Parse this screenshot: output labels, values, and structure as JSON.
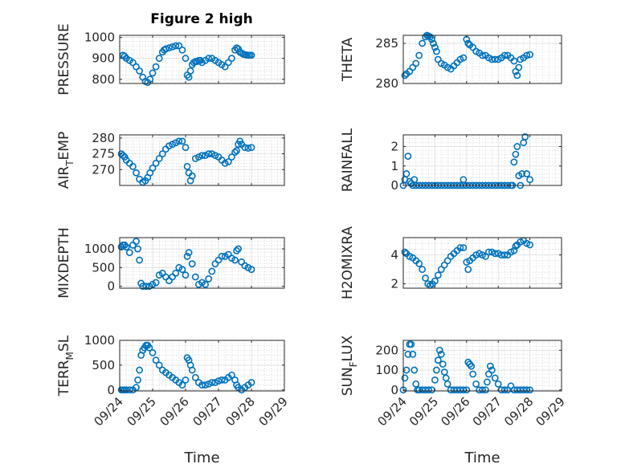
{
  "figure_title": "Figure 2 high",
  "colors": {
    "marker": "#0072BD",
    "axis": "#262626",
    "grid": "#dcdcdc"
  },
  "x_ticks": [
    {
      "value": "2000-09-24",
      "label": "09/24"
    },
    {
      "value": "2000-09-25",
      "label": "09/25"
    },
    {
      "value": "2000-09-26",
      "label": "09/26"
    },
    {
      "value": "2000-09-27",
      "label": "09/27"
    },
    {
      "value": "2000-09-28",
      "label": "09/28"
    },
    {
      "value": "2000-09-29",
      "label": "09/29"
    }
  ],
  "x_axis_label": "Time",
  "chart_data": [
    {
      "type": "scatter",
      "ylabel": "PRESSURE",
      "ylim": [
        780,
        1010
      ],
      "yticks": [
        800,
        900,
        1000
      ],
      "ytick_labels": [
        "800",
        "900",
        "1000"
      ],
      "series": [
        {
          "x": [
            0.1,
            0.15,
            0.2,
            0.3,
            0.4,
            0.5,
            0.6,
            0.7,
            0.78,
            0.85,
            0.92,
            1.0,
            1.1,
            1.2,
            1.3,
            1.35,
            1.4,
            1.5,
            1.6,
            1.7,
            1.8,
            1.9,
            2.0,
            2.05,
            2.1,
            2.15,
            2.2,
            2.25,
            2.3,
            2.35,
            2.4,
            2.45,
            2.5,
            2.6,
            2.7,
            2.8,
            2.9,
            3.0,
            3.1,
            3.2,
            3.3,
            3.4,
            3.5,
            3.55,
            3.6,
            3.65,
            3.7,
            3.75,
            3.8,
            3.85,
            3.9,
            3.95,
            4.0
          ],
          "y": [
            915,
            910,
            900,
            890,
            880,
            860,
            840,
            810,
            790,
            785,
            800,
            830,
            860,
            900,
            930,
            940,
            945,
            950,
            955,
            960,
            960,
            940,
            900,
            820,
            810,
            840,
            870,
            880,
            885,
            885,
            890,
            890,
            880,
            890,
            900,
            900,
            890,
            880,
            870,
            860,
            880,
            900,
            940,
            950,
            945,
            930,
            925,
            920,
            918,
            916,
            915,
            915,
            915
          ]
        }
      ]
    },
    {
      "type": "scatter",
      "ylabel": "THETA",
      "ylim": [
        280,
        286
      ],
      "yticks": [
        280,
        285
      ],
      "ytick_labels": [
        "280",
        "285"
      ],
      "series": [
        {
          "x": [
            0.05,
            0.1,
            0.2,
            0.3,
            0.4,
            0.5,
            0.6,
            0.7,
            0.75,
            0.8,
            0.85,
            0.9,
            0.95,
            1.0,
            1.05,
            1.1,
            1.2,
            1.3,
            1.4,
            1.5,
            1.6,
            1.7,
            1.8,
            1.9,
            2.0,
            2.05,
            2.1,
            2.2,
            2.3,
            2.4,
            2.5,
            2.6,
            2.7,
            2.8,
            2.9,
            3.0,
            3.1,
            3.2,
            3.3,
            3.4,
            3.5,
            3.55,
            3.6,
            3.65,
            3.7,
            3.8,
            3.9,
            4.0
          ],
          "y": [
            281,
            281.2,
            281.5,
            282,
            282.5,
            283.5,
            285,
            285.8,
            286,
            285.9,
            285.8,
            285.5,
            285,
            284.5,
            284,
            283,
            282.5,
            282.3,
            282,
            281.8,
            282.2,
            282.6,
            283,
            283.2,
            285.5,
            285,
            284.8,
            284.5,
            284,
            283.8,
            283.5,
            283.5,
            283.2,
            283.0,
            283,
            283,
            283.2,
            283.5,
            283.5,
            283.2,
            282.8,
            281.5,
            281,
            282,
            283,
            283.2,
            283.5,
            283.6
          ]
        }
      ]
    },
    {
      "type": "scatter",
      "ylabel": "AIR_TEMP",
      "ylim": [
        265,
        281
      ],
      "yticks": [
        270,
        275,
        280
      ],
      "ytick_labels": [
        "270",
        "275",
        "280"
      ],
      "series": [
        {
          "x": [
            0.05,
            0.1,
            0.15,
            0.2,
            0.3,
            0.4,
            0.5,
            0.6,
            0.7,
            0.78,
            0.85,
            0.92,
            1.0,
            1.1,
            1.2,
            1.3,
            1.4,
            1.5,
            1.6,
            1.7,
            1.8,
            1.9,
            2.0,
            2.05,
            2.1,
            2.15,
            2.2,
            2.3,
            2.4,
            2.5,
            2.6,
            2.7,
            2.8,
            2.9,
            3.0,
            3.1,
            3.2,
            3.3,
            3.4,
            3.5,
            3.55,
            3.6,
            3.65,
            3.7,
            3.8,
            3.9,
            4.0
          ],
          "y": [
            275,
            274.5,
            274,
            273,
            272,
            271,
            269,
            267,
            266,
            266.5,
            267.5,
            269,
            270.5,
            272,
            273.5,
            275,
            276.5,
            277.5,
            278,
            278.5,
            279,
            279,
            277,
            271,
            269,
            266.5,
            268,
            273.5,
            274,
            274.5,
            274.5,
            275,
            275,
            274.5,
            274,
            273,
            272,
            272.5,
            274,
            275.5,
            276,
            278,
            279,
            278,
            277,
            276.8,
            277
          ]
        }
      ]
    },
    {
      "type": "scatter",
      "ylabel": "RAINFALL",
      "ylim": [
        0,
        2.6
      ],
      "yticks": [
        0,
        1,
        2
      ],
      "ytick_labels": [
        "0",
        "1",
        "2"
      ],
      "series": [
        {
          "x": [
            0.0,
            0.05,
            0.1,
            0.15,
            0.2,
            0.25,
            0.3,
            0.35,
            0.4,
            0.5,
            0.6,
            0.7,
            0.8,
            0.9,
            1.0,
            1.1,
            1.2,
            1.3,
            1.4,
            1.5,
            1.6,
            1.7,
            1.8,
            1.9,
            2.0,
            2.1,
            2.2,
            2.3,
            2.4,
            2.5,
            2.6,
            2.7,
            2.8,
            2.9,
            3.0,
            3.1,
            3.2,
            3.3,
            3.4,
            3.45,
            3.5,
            3.55,
            3.6,
            3.65,
            3.7,
            3.75,
            3.8,
            3.85,
            3.9,
            4.0,
            1.9
          ],
          "y": [
            0,
            0.3,
            0.6,
            1.5,
            0.2,
            0.1,
            0,
            0.3,
            0,
            0,
            0,
            0,
            0,
            0,
            0,
            0,
            0,
            0,
            0,
            0,
            0,
            0,
            0,
            0,
            0,
            0,
            0,
            0,
            0,
            0,
            0,
            0,
            0,
            0,
            0,
            0,
            0,
            0,
            0,
            0,
            1.2,
            1.6,
            2.0,
            0.5,
            0,
            0.6,
            2.2,
            2.5,
            0.6,
            0.3,
            0.3
          ]
        }
      ]
    },
    {
      "type": "scatter",
      "ylabel": "MIXDEPTH",
      "ylim": [
        -50,
        1300
      ],
      "yticks": [
        0,
        500,
        1000
      ],
      "ytick_labels": [
        "0",
        "500",
        "1000"
      ],
      "series": [
        {
          "x": [
            0.05,
            0.1,
            0.15,
            0.2,
            0.3,
            0.4,
            0.5,
            0.55,
            0.6,
            0.65,
            0.7,
            0.8,
            0.9,
            1.0,
            1.1,
            1.2,
            1.3,
            1.4,
            1.5,
            1.6,
            1.7,
            1.8,
            1.9,
            2.0,
            2.05,
            2.1,
            2.2,
            2.3,
            2.4,
            2.5,
            2.6,
            2.7,
            2.8,
            2.9,
            3.0,
            3.1,
            3.2,
            3.3,
            3.4,
            3.5,
            3.55,
            3.6,
            3.7,
            3.8,
            3.9,
            4.0
          ],
          "y": [
            1050,
            1100,
            1100,
            1050,
            900,
            1100,
            1200,
            1000,
            700,
            80,
            0,
            0,
            0,
            50,
            100,
            300,
            350,
            250,
            150,
            250,
            350,
            500,
            450,
            300,
            800,
            900,
            600,
            250,
            50,
            100,
            50,
            200,
            400,
            600,
            700,
            800,
            800,
            850,
            750,
            700,
            950,
            1000,
            650,
            550,
            500,
            450
          ]
        }
      ]
    },
    {
      "type": "scatter",
      "ylabel": "H2OMIXRA",
      "ylim": [
        1.7,
        5.2
      ],
      "yticks": [
        2,
        4
      ],
      "ytick_labels": [
        "2",
        "4"
      ],
      "series": [
        {
          "x": [
            0.05,
            0.1,
            0.2,
            0.3,
            0.4,
            0.5,
            0.6,
            0.7,
            0.78,
            0.85,
            0.92,
            1.0,
            1.1,
            1.2,
            1.3,
            1.4,
            1.5,
            1.6,
            1.7,
            1.8,
            1.9,
            2.0,
            2.05,
            2.1,
            2.2,
            2.3,
            2.4,
            2.5,
            2.6,
            2.7,
            2.8,
            2.9,
            3.0,
            3.1,
            3.2,
            3.3,
            3.4,
            3.5,
            3.55,
            3.6,
            3.7,
            3.8,
            3.9,
            4.0
          ],
          "y": [
            4.2,
            4.1,
            3.9,
            3.8,
            3.6,
            3.4,
            3.0,
            2.4,
            2.0,
            1.9,
            2.0,
            2.2,
            2.6,
            3.0,
            3.3,
            3.6,
            3.9,
            4.1,
            4.3,
            4.5,
            4.5,
            3.5,
            3.0,
            3.6,
            3.8,
            4.0,
            4.1,
            4.0,
            3.9,
            4.2,
            4.2,
            4.1,
            4.1,
            4.0,
            4.0,
            4.0,
            4.2,
            4.3,
            4.6,
            4.7,
            4.9,
            5.0,
            4.8,
            4.7
          ]
        }
      ]
    },
    {
      "type": "scatter",
      "ylabel": "TERR_MSL",
      "ylim": [
        -20,
        1000
      ],
      "yticks": [
        0,
        500,
        1000
      ],
      "ytick_labels": [
        "0",
        "500",
        "1000"
      ],
      "series": [
        {
          "x": [
            0.05,
            0.1,
            0.15,
            0.2,
            0.3,
            0.4,
            0.5,
            0.55,
            0.6,
            0.65,
            0.7,
            0.75,
            0.8,
            0.85,
            0.9,
            1.0,
            1.1,
            1.2,
            1.3,
            1.4,
            1.5,
            1.6,
            1.7,
            1.8,
            1.9,
            2.0,
            2.05,
            2.1,
            2.15,
            2.2,
            2.3,
            2.4,
            2.5,
            2.6,
            2.7,
            2.8,
            2.9,
            3.0,
            3.1,
            3.2,
            3.3,
            3.4,
            3.5,
            3.55,
            3.6,
            3.7,
            3.8,
            3.9,
            4.0
          ],
          "y": [
            0,
            0,
            0,
            0,
            0,
            0,
            50,
            200,
            400,
            700,
            800,
            850,
            900,
            900,
            850,
            750,
            600,
            500,
            400,
            350,
            300,
            250,
            200,
            150,
            100,
            200,
            650,
            600,
            500,
            400,
            250,
            150,
            100,
            100,
            120,
            150,
            150,
            180,
            200,
            200,
            250,
            300,
            200,
            100,
            50,
            0,
            50,
            100,
            150
          ]
        }
      ]
    },
    {
      "type": "scatter",
      "ylabel": "SUN_FLUX",
      "ylim": [
        -5,
        250
      ],
      "yticks": [
        0,
        100,
        200
      ],
      "ytick_labels": [
        "0",
        "100",
        "200"
      ],
      "series": [
        {
          "x": [
            0.0,
            0.05,
            0.1,
            0.15,
            0.2,
            0.25,
            0.3,
            0.35,
            0.4,
            0.45,
            0.5,
            0.6,
            0.7,
            0.8,
            0.9,
            1.0,
            1.05,
            1.1,
            1.15,
            1.2,
            1.25,
            1.3,
            1.35,
            1.4,
            1.5,
            1.6,
            1.7,
            1.8,
            1.9,
            2.0,
            2.05,
            2.1,
            2.15,
            2.2,
            2.3,
            2.4,
            2.5,
            2.6,
            2.65,
            2.7,
            2.75,
            2.8,
            2.9,
            3.0,
            3.1,
            3.2,
            3.3,
            3.4,
            3.5,
            3.6,
            3.7,
            3.8,
            3.9,
            4.0
          ],
          "y": [
            0,
            60,
            100,
            180,
            230,
            230,
            180,
            100,
            30,
            0,
            0,
            0,
            0,
            0,
            0,
            50,
            100,
            150,
            200,
            180,
            130,
            90,
            60,
            30,
            0,
            0,
            0,
            0,
            0,
            0,
            140,
            130,
            120,
            80,
            30,
            0,
            0,
            0,
            40,
            80,
            120,
            100,
            60,
            30,
            0,
            0,
            0,
            20,
            0,
            0,
            0,
            0,
            0,
            0
          ]
        }
      ]
    }
  ]
}
